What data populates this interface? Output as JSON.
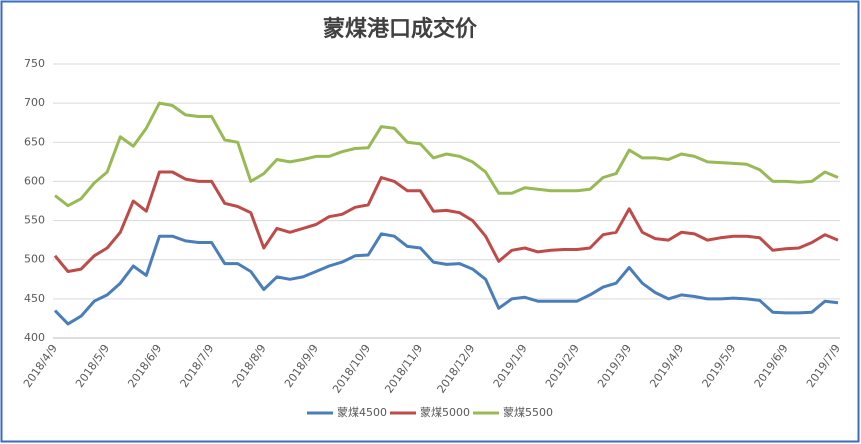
{
  "chart_data": {
    "type": "line",
    "title": "蒙煤港口成交价",
    "categories": [
      "2018/4/9",
      null,
      null,
      null,
      "2018/5/9",
      null,
      null,
      null,
      "2018/6/9",
      null,
      null,
      null,
      "2018/7/9",
      null,
      null,
      null,
      "2018/8/9",
      null,
      null,
      null,
      "2018/9/9",
      null,
      null,
      null,
      "2018/10/9",
      null,
      null,
      null,
      "2018/11/9",
      null,
      null,
      null,
      "2018/12/9",
      null,
      null,
      null,
      "2019/1/9",
      null,
      null,
      null,
      "2019/2/9",
      null,
      null,
      null,
      "2019/3/9",
      null,
      null,
      null,
      "2019/4/9",
      null,
      null,
      null,
      "2019/5/9",
      null,
      null,
      null,
      "2019/6/9",
      null,
      null,
      null,
      "2019/7/9"
    ],
    "series": [
      {
        "name": "蒙煤4500",
        "color": "#4a7ebb",
        "values": [
          435,
          418,
          428,
          447,
          455,
          470,
          492,
          480,
          530,
          530,
          524,
          522,
          522,
          495,
          495,
          485,
          462,
          478,
          475,
          478,
          485,
          492,
          497,
          505,
          506,
          533,
          530,
          517,
          515,
          497,
          494,
          495,
          488,
          475,
          438,
          450,
          452,
          447,
          447,
          447,
          447,
          455,
          465,
          470,
          490,
          470,
          458,
          450,
          455,
          453,
          450,
          450,
          451,
          450,
          448,
          433,
          432,
          432,
          433,
          447,
          445
        ]
      },
      {
        "name": "蒙煤5000",
        "color": "#be4b48",
        "values": [
          505,
          485,
          488,
          505,
          515,
          535,
          575,
          562,
          612,
          612,
          603,
          600,
          600,
          572,
          568,
          560,
          515,
          540,
          535,
          540,
          545,
          555,
          558,
          567,
          570,
          605,
          600,
          588,
          588,
          562,
          563,
          560,
          550,
          530,
          498,
          512,
          515,
          510,
          512,
          513,
          513,
          515,
          532,
          535,
          565,
          535,
          527,
          525,
          535,
          533,
          525,
          528,
          530,
          530,
          528,
          512,
          514,
          515,
          522,
          532,
          525
        ]
      },
      {
        "name": "蒙煤5500",
        "color": "#98b954",
        "values": [
          582,
          569,
          578,
          598,
          612,
          657,
          645,
          668,
          700,
          697,
          685,
          683,
          683,
          653,
          650,
          600,
          610,
          628,
          625,
          628,
          632,
          632,
          638,
          642,
          643,
          670,
          668,
          650,
          648,
          630,
          635,
          632,
          625,
          612,
          585,
          585,
          592,
          590,
          588,
          588,
          588,
          590,
          605,
          610,
          640,
          630,
          630,
          628,
          635,
          632,
          625,
          624,
          623,
          622,
          615,
          600,
          600,
          599,
          600,
          612,
          605
        ]
      }
    ],
    "ylim": [
      400,
      750
    ],
    "yticks": [
      400,
      450,
      500,
      550,
      600,
      650,
      700,
      750
    ],
    "grid": true,
    "legend": "bottom"
  }
}
